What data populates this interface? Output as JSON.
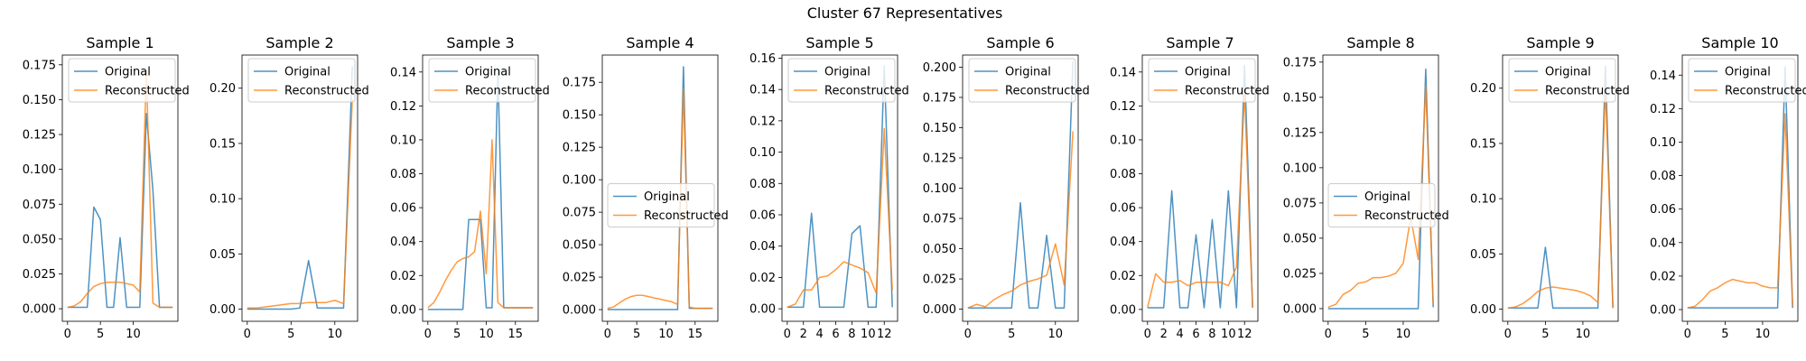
{
  "suptitle": "Cluster 67 Representatives",
  "colors": {
    "original": "#1f77b4",
    "reconstructed": "#ff7f0e"
  },
  "legend": {
    "original": "Original",
    "reconstructed": "Reconstructed"
  },
  "chart_data": [
    {
      "type": "line",
      "title": "Sample 1",
      "xlim": [
        -0.8,
        16.8
      ],
      "xticks": [
        0,
        5,
        10
      ],
      "ylim": [
        -0.009,
        0.182
      ],
      "yticks": [
        0,
        0.025,
        0.05,
        0.075,
        0.1,
        0.125,
        0.15,
        0.175
      ],
      "ytick_labels": [
        "0.000",
        "0.025",
        "0.050",
        "0.075",
        "0.100",
        "0.125",
        "0.150",
        "0.175"
      ],
      "legend_position": "upper-center",
      "series": [
        {
          "name": "Original",
          "x": [
            0,
            1,
            2,
            3,
            4,
            5,
            6,
            7,
            8,
            9,
            10,
            11,
            12,
            13,
            14,
            15,
            16
          ],
          "y": [
            0.001,
            0.001,
            0.001,
            0.001,
            0.073,
            0.064,
            0.001,
            0.001,
            0.051,
            0.001,
            0.001,
            0.001,
            0.14,
            0.085,
            0.001,
            0.001,
            0.001
          ]
        },
        {
          "name": "Reconstructed",
          "x": [
            0,
            1,
            2,
            3,
            4,
            5,
            6,
            7,
            8,
            9,
            10,
            11,
            12,
            13,
            14,
            15,
            16
          ],
          "y": [
            0.001,
            0.002,
            0.005,
            0.011,
            0.016,
            0.018,
            0.019,
            0.019,
            0.019,
            0.018,
            0.017,
            0.012,
            0.171,
            0.004,
            0.001,
            0.001,
            0.001
          ]
        }
      ]
    },
    {
      "type": "line",
      "title": "Sample 2",
      "xlim": [
        -0.6,
        12.6
      ],
      "xticks": [
        0,
        5,
        10
      ],
      "ylim": [
        -0.011,
        0.23
      ],
      "yticks": [
        0,
        0.05,
        0.1,
        0.15,
        0.2
      ],
      "ytick_labels": [
        "0.00",
        "0.05",
        "0.10",
        "0.15",
        "0.20"
      ],
      "legend_position": "upper-center",
      "series": [
        {
          "name": "Original",
          "x": [
            0,
            1,
            2,
            3,
            4,
            5,
            6,
            7,
            8,
            9,
            10,
            11,
            12
          ],
          "y": [
            0,
            0,
            0,
            0,
            0,
            0,
            0.001,
            0.044,
            0.001,
            0.001,
            0.001,
            0.001,
            0.22
          ]
        },
        {
          "name": "Reconstructed",
          "x": [
            0,
            1,
            2,
            3,
            4,
            5,
            6,
            7,
            8,
            9,
            10,
            11,
            12
          ],
          "y": [
            0.001,
            0.001,
            0.002,
            0.003,
            0.004,
            0.005,
            0.005,
            0.006,
            0.006,
            0.006,
            0.008,
            0.005,
            0.19
          ]
        }
      ]
    },
    {
      "type": "line",
      "title": "Sample 3",
      "xlim": [
        -0.9,
        18.9
      ],
      "xticks": [
        0,
        5,
        10,
        15
      ],
      "ylim": [
        -0.007,
        0.15
      ],
      "yticks": [
        0,
        0.02,
        0.04,
        0.06,
        0.08,
        0.1,
        0.12,
        0.14
      ],
      "ytick_labels": [
        "0.00",
        "0.02",
        "0.04",
        "0.06",
        "0.08",
        "0.10",
        "0.12",
        "0.14"
      ],
      "legend_position": "upper-center",
      "series": [
        {
          "name": "Original",
          "x": [
            0,
            1,
            2,
            3,
            4,
            5,
            6,
            7,
            8,
            9,
            10,
            11,
            12,
            13,
            14,
            15,
            16,
            17,
            18
          ],
          "y": [
            0,
            0,
            0,
            0,
            0,
            0,
            0,
            0.053,
            0.053,
            0.053,
            0.001,
            0.001,
            0.141,
            0.001,
            0.001,
            0.001,
            0.001,
            0.001,
            0.001
          ]
        },
        {
          "name": "Reconstructed",
          "x": [
            0,
            1,
            2,
            3,
            4,
            5,
            6,
            7,
            8,
            9,
            10,
            11,
            12,
            13,
            14,
            15,
            16,
            17,
            18
          ],
          "y": [
            0.001,
            0.004,
            0.01,
            0.017,
            0.023,
            0.028,
            0.03,
            0.031,
            0.034,
            0.058,
            0.021,
            0.1,
            0.004,
            0.001,
            0.001,
            0.001,
            0.001,
            0.001,
            0.001
          ]
        }
      ]
    },
    {
      "type": "line",
      "title": "Sample 4",
      "xlim": [
        -0.9,
        18.9
      ],
      "xticks": [
        0,
        5,
        10,
        15
      ],
      "ylim": [
        -0.009,
        0.196
      ],
      "yticks": [
        0,
        0.025,
        0.05,
        0.075,
        0.1,
        0.125,
        0.15,
        0.175
      ],
      "ytick_labels": [
        "0.000",
        "0.025",
        "0.050",
        "0.075",
        "0.100",
        "0.125",
        "0.150",
        "0.175"
      ],
      "legend_position": "center-right",
      "series": [
        {
          "name": "Original",
          "x": [
            0,
            1,
            2,
            3,
            4,
            5,
            6,
            7,
            8,
            9,
            10,
            11,
            12,
            13,
            14,
            15,
            16,
            17,
            18
          ],
          "y": [
            0,
            0,
            0,
            0,
            0,
            0,
            0,
            0,
            0,
            0,
            0,
            0,
            0,
            0.187,
            0.001,
            0.001,
            0.001,
            0.001,
            0.001
          ]
        },
        {
          "name": "Reconstructed",
          "x": [
            0,
            1,
            2,
            3,
            4,
            5,
            6,
            7,
            8,
            9,
            10,
            11,
            12,
            13,
            14,
            15,
            16,
            17,
            18
          ],
          "y": [
            0.001,
            0.002,
            0.005,
            0.008,
            0.01,
            0.011,
            0.011,
            0.01,
            0.009,
            0.008,
            0.007,
            0.006,
            0.004,
            0.17,
            0.002,
            0.001,
            0.001,
            0.001,
            0.001
          ]
        }
      ]
    },
    {
      "type": "line",
      "title": "Sample 5",
      "xlim": [
        -0.65,
        13.65
      ],
      "xticks": [
        0,
        2,
        4,
        6,
        8,
        10,
        12
      ],
      "ylim": [
        -0.008,
        0.162
      ],
      "yticks": [
        0,
        0.02,
        0.04,
        0.06,
        0.08,
        0.1,
        0.12,
        0.14,
        0.16
      ],
      "ytick_labels": [
        "0.00",
        "0.02",
        "0.04",
        "0.06",
        "0.08",
        "0.10",
        "0.12",
        "0.14",
        "0.16"
      ],
      "legend_position": "upper-center",
      "series": [
        {
          "name": "Original",
          "x": [
            0,
            1,
            2,
            3,
            4,
            5,
            6,
            7,
            8,
            9,
            10,
            11,
            12,
            13
          ],
          "y": [
            0.001,
            0.001,
            0.001,
            0.061,
            0.001,
            0.001,
            0.001,
            0.001,
            0.048,
            0.053,
            0.001,
            0.001,
            0.155,
            0.001
          ]
        },
        {
          "name": "Reconstructed",
          "x": [
            0,
            1,
            2,
            3,
            4,
            5,
            6,
            7,
            8,
            9,
            10,
            11,
            12,
            13
          ],
          "y": [
            0.001,
            0.003,
            0.012,
            0.012,
            0.02,
            0.021,
            0.025,
            0.03,
            0.028,
            0.026,
            0.023,
            0.01,
            0.115,
            0.012
          ]
        }
      ]
    },
    {
      "type": "line",
      "title": "Sample 6",
      "xlim": [
        -0.6,
        12.6
      ],
      "xticks": [
        0,
        5,
        10
      ],
      "ylim": [
        -0.01,
        0.21
      ],
      "yticks": [
        0,
        0.025,
        0.05,
        0.075,
        0.1,
        0.125,
        0.15,
        0.175,
        0.2
      ],
      "ytick_labels": [
        "0.000",
        "0.025",
        "0.050",
        "0.075",
        "0.100",
        "0.125",
        "0.150",
        "0.175",
        "0.200"
      ],
      "legend_position": "upper-center",
      "series": [
        {
          "name": "Original",
          "x": [
            0,
            1,
            2,
            3,
            4,
            5,
            6,
            7,
            8,
            9,
            10,
            11,
            12
          ],
          "y": [
            0.001,
            0.001,
            0.001,
            0.001,
            0.001,
            0.001,
            0.088,
            0.001,
            0.001,
            0.061,
            0.001,
            0.001,
            0.205
          ]
        },
        {
          "name": "Reconstructed",
          "x": [
            0,
            1,
            2,
            3,
            4,
            5,
            6,
            7,
            8,
            9,
            10,
            11,
            12
          ],
          "y": [
            0.001,
            0.004,
            0.002,
            0.008,
            0.012,
            0.015,
            0.02,
            0.023,
            0.025,
            0.028,
            0.054,
            0.02,
            0.147
          ]
        }
      ]
    },
    {
      "type": "line",
      "title": "Sample 7",
      "xlim": [
        -0.65,
        13.65
      ],
      "xticks": [
        0,
        2,
        4,
        6,
        8,
        10,
        12
      ],
      "ylim": [
        -0.007,
        0.15
      ],
      "yticks": [
        0,
        0.02,
        0.04,
        0.06,
        0.08,
        0.1,
        0.12,
        0.14
      ],
      "ytick_labels": [
        "0.00",
        "0.02",
        "0.04",
        "0.06",
        "0.08",
        "0.10",
        "0.12",
        "0.14"
      ],
      "legend_position": "upper-center",
      "series": [
        {
          "name": "Original",
          "x": [
            0,
            1,
            2,
            3,
            4,
            5,
            6,
            7,
            8,
            9,
            10,
            11,
            12,
            13
          ],
          "y": [
            0.001,
            0.001,
            0.001,
            0.07,
            0.001,
            0.001,
            0.044,
            0.001,
            0.053,
            0.001,
            0.07,
            0.001,
            0.144,
            0.001
          ]
        },
        {
          "name": "Reconstructed",
          "x": [
            0,
            1,
            2,
            3,
            4,
            5,
            6,
            7,
            8,
            9,
            10,
            11,
            12,
            13
          ],
          "y": [
            0.001,
            0.021,
            0.016,
            0.016,
            0.017,
            0.014,
            0.016,
            0.016,
            0.016,
            0.016,
            0.014,
            0.025,
            0.128,
            0.001
          ]
        }
      ]
    },
    {
      "type": "line",
      "title": "Sample 8",
      "xlim": [
        -0.7,
        14.7
      ],
      "xticks": [
        0,
        5,
        10
      ],
      "ylim": [
        -0.009,
        0.18
      ],
      "yticks": [
        0,
        0.025,
        0.05,
        0.075,
        0.1,
        0.125,
        0.15,
        0.175
      ],
      "ytick_labels": [
        "0.000",
        "0.025",
        "0.050",
        "0.075",
        "0.100",
        "0.125",
        "0.150",
        "0.175"
      ],
      "legend_position": "center-right",
      "series": [
        {
          "name": "Original",
          "x": [
            0,
            1,
            2,
            3,
            4,
            5,
            6,
            7,
            8,
            9,
            10,
            11,
            12,
            13,
            14
          ],
          "y": [
            0,
            0,
            0,
            0,
            0,
            0,
            0,
            0,
            0,
            0,
            0,
            0,
            0,
            0.17,
            0.001
          ]
        },
        {
          "name": "Reconstructed",
          "x": [
            0,
            1,
            2,
            3,
            4,
            5,
            6,
            7,
            8,
            9,
            10,
            11,
            12,
            13,
            14
          ],
          "y": [
            0.001,
            0.003,
            0.01,
            0.013,
            0.018,
            0.019,
            0.022,
            0.022,
            0.023,
            0.025,
            0.032,
            0.065,
            0.035,
            0.158,
            0.003
          ]
        }
      ]
    },
    {
      "type": "line",
      "title": "Sample 9",
      "xlim": [
        -0.7,
        14.7
      ],
      "xticks": [
        0,
        5,
        10
      ],
      "ylim": [
        -0.011,
        0.23
      ],
      "yticks": [
        0,
        0.05,
        0.1,
        0.15,
        0.2
      ],
      "ytick_labels": [
        "0.00",
        "0.05",
        "0.10",
        "0.15",
        "0.20"
      ],
      "legend_position": "upper-center",
      "series": [
        {
          "name": "Original",
          "x": [
            0,
            1,
            2,
            3,
            4,
            5,
            6,
            7,
            8,
            9,
            10,
            11,
            12,
            13,
            14
          ],
          "y": [
            0.001,
            0.001,
            0.001,
            0.001,
            0.001,
            0.056,
            0.001,
            0.001,
            0.001,
            0.001,
            0.001,
            0.001,
            0.001,
            0.22,
            0.001
          ]
        },
        {
          "name": "Reconstructed",
          "x": [
            0,
            1,
            2,
            3,
            4,
            5,
            6,
            7,
            8,
            9,
            10,
            11,
            12,
            13,
            14
          ],
          "y": [
            0.001,
            0.002,
            0.005,
            0.01,
            0.016,
            0.019,
            0.02,
            0.019,
            0.018,
            0.017,
            0.015,
            0.012,
            0.006,
            0.2,
            0.001
          ]
        }
      ]
    },
    {
      "type": "line",
      "title": "Sample 10",
      "xlim": [
        -0.7,
        14.7
      ],
      "xticks": [
        0,
        5,
        10
      ],
      "ylim": [
        -0.007,
        0.152
      ],
      "yticks": [
        0,
        0.02,
        0.04,
        0.06,
        0.08,
        0.1,
        0.12,
        0.14
      ],
      "ytick_labels": [
        "0.00",
        "0.02",
        "0.04",
        "0.06",
        "0.08",
        "0.10",
        "0.12",
        "0.14"
      ],
      "legend_position": "upper-center",
      "series": [
        {
          "name": "Original",
          "x": [
            0,
            1,
            2,
            3,
            4,
            5,
            6,
            7,
            8,
            9,
            10,
            11,
            12,
            13,
            14
          ],
          "y": [
            0.001,
            0.001,
            0.001,
            0.001,
            0.001,
            0.001,
            0.001,
            0.001,
            0.001,
            0.001,
            0.001,
            0.001,
            0.001,
            0.145,
            0.001
          ]
        },
        {
          "name": "Reconstructed",
          "x": [
            0,
            1,
            2,
            3,
            4,
            5,
            6,
            7,
            8,
            9,
            10,
            11,
            12,
            13,
            14
          ],
          "y": [
            0.001,
            0.002,
            0.006,
            0.011,
            0.013,
            0.016,
            0.018,
            0.017,
            0.016,
            0.016,
            0.014,
            0.013,
            0.013,
            0.117,
            0.002
          ]
        }
      ]
    }
  ]
}
